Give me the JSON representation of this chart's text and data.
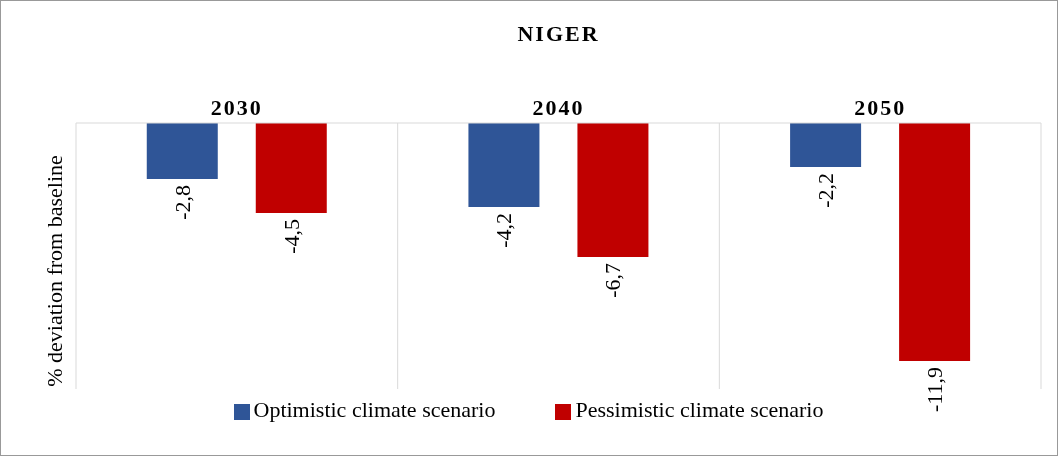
{
  "chart_data": {
    "type": "bar",
    "title": "NIGER",
    "ylabel": "% deviation from baseline",
    "categories": [
      "2030",
      "2040",
      "2050"
    ],
    "series": [
      {
        "name": "Optimistic climate scenario",
        "color": "#2f5597",
        "values": [
          -2.8,
          -4.2,
          -2.2
        ],
        "value_labels": [
          "-2,8",
          "-4,2",
          "-2,2"
        ]
      },
      {
        "name": "Pessimistic climate scenario",
        "color": "#c00000",
        "values": [
          -4.5,
          -6.7,
          -11.9
        ],
        "value_labels": [
          "-4,5",
          "-6,7",
          "-11,9"
        ]
      }
    ],
    "grid": "x",
    "legend": "bottom"
  }
}
